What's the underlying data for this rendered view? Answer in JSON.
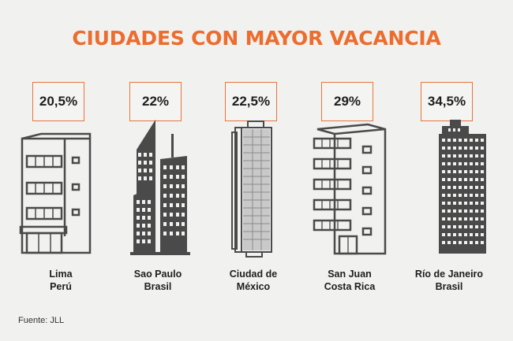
{
  "title": "CIUDADES CON MAYOR VACANCIA",
  "cities": [
    {
      "pct": "20,5%",
      "line1": "Lima",
      "line2": "Perú",
      "icon": "low-rise-office-building"
    },
    {
      "pct": "22%",
      "line1": "Sao Paulo",
      "line2": "Brasil",
      "icon": "twin-towers-building"
    },
    {
      "pct": "22,5%",
      "line1": "Ciudad de",
      "line2": "México",
      "icon": "glass-tower-building"
    },
    {
      "pct": "29%",
      "line1": "San Juan",
      "line2": "Costa Rica",
      "icon": "balcony-apartment-building"
    },
    {
      "pct": "34,5%",
      "line1": "Río de Janeiro",
      "line2": "Brasil",
      "icon": "tall-grid-tower-building"
    }
  ],
  "source": "Fuente: JLL",
  "colors": {
    "accent": "#ec6d2d",
    "text": "#1e1e1e",
    "building": "#4a4a4a",
    "background": "#f1f1f0"
  }
}
